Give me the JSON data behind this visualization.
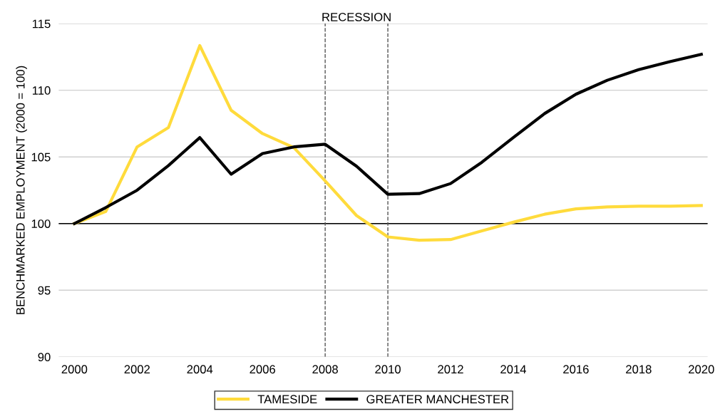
{
  "chart_data": {
    "type": "line",
    "ylabel": "BENCHMARKED EMPLOYMENT (2000 = 100)",
    "x": [
      2000,
      2001,
      2002,
      2003,
      2004,
      2005,
      2006,
      2007,
      2008,
      2009,
      2010,
      2011,
      2012,
      2013,
      2014,
      2015,
      2016,
      2017,
      2018,
      2019,
      2020
    ],
    "series": [
      {
        "name": "TAMESIDE",
        "color": "#ffdb3c",
        "values": [
          100,
          100.9,
          105.75,
          107.2,
          113.35,
          108.5,
          106.75,
          105.7,
          103.2,
          100.6,
          99.0,
          98.75,
          98.8,
          99.45,
          100.1,
          100.7,
          101.1,
          101.25,
          101.3,
          101.3,
          101.35
        ]
      },
      {
        "name": "GREATER MANCHESTER",
        "color": "#000000",
        "values": [
          100,
          101.2,
          102.5,
          104.35,
          106.45,
          103.7,
          105.25,
          105.75,
          105.95,
          104.3,
          102.2,
          102.25,
          103.0,
          104.6,
          106.45,
          108.25,
          109.7,
          110.75,
          111.55,
          112.15,
          112.7
        ]
      }
    ],
    "xlim": [
      1999.5,
      2020.2
    ],
    "xticks": [
      2000,
      2002,
      2004,
      2006,
      2008,
      2010,
      2012,
      2014,
      2016,
      2018,
      2020
    ],
    "ylim": [
      90,
      115
    ],
    "yticks": [
      90,
      95,
      100,
      105,
      110,
      115
    ],
    "ref_lines": [
      {
        "axis": "y",
        "value": 100,
        "color": "#000000",
        "line_style": "solid"
      },
      {
        "axis": "x",
        "value": 2008,
        "color": "#555555",
        "line_style": "dashed"
      },
      {
        "axis": "x",
        "value": 2010,
        "color": "#555555",
        "line_style": "dashed"
      }
    ],
    "annotations": [
      "RECESSION"
    ],
    "grid": "y",
    "legend": "bottom",
    "marker": "none",
    "line_style": "solid"
  }
}
